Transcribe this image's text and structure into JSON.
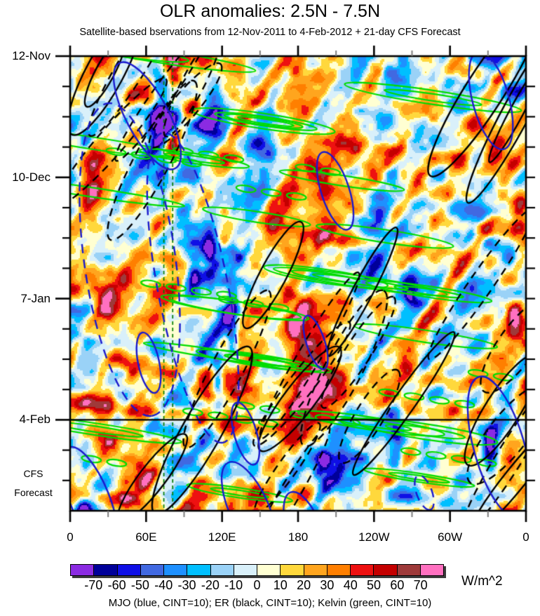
{
  "header": {
    "title": "OLR anomalies: 2.5N - 7.5N",
    "subtitle": "Satellite-based bservations from 12-Nov-2011 to 4-Feb-2012 + 21-day CFS Forecast"
  },
  "chart_data": {
    "type": "heatmap",
    "variant": "hovmoller-longitude-time",
    "title": "OLR anomalies: 2.5N - 7.5N",
    "subtitle": "Satellite-based bservations from 12-Nov-2011 to 4-Feb-2012 + 21-day CFS Forecast",
    "x_axis": {
      "ticks": [
        {
          "label": "0",
          "lon": 0
        },
        {
          "label": "60E",
          "lon": 60
        },
        {
          "label": "120E",
          "lon": 120
        },
        {
          "label": "180",
          "lon": 180
        },
        {
          "label": "120W",
          "lon": 240
        },
        {
          "label": "60W",
          "lon": 300
        },
        {
          "label": "0",
          "lon": 360
        }
      ],
      "minor_tick_interval_deg": 30,
      "range_deg": [
        0,
        360
      ]
    },
    "y_axis": {
      "ticks": [
        {
          "label": "12-Nov",
          "day": 0
        },
        {
          "label": "10-Dec",
          "day": 28
        },
        {
          "label": "7-Jan",
          "day": 56
        },
        {
          "label": "4-Feb",
          "day": 84
        }
      ],
      "minor_tick_interval_days": 7,
      "total_days": 105,
      "observation_days": 84,
      "forecast_days": 21,
      "forecast_divider_day": 84,
      "forecast_label_lines": [
        "CFS",
        "Forecast"
      ]
    },
    "colorbar": {
      "levels": [
        -70,
        -60,
        -50,
        -40,
        -30,
        -20,
        -10,
        0,
        10,
        20,
        30,
        40,
        50,
        60,
        70
      ],
      "colors": [
        "#8b2be2",
        "#000099",
        "#0f0fe6",
        "#4169e1",
        "#1e90ff",
        "#00bfff",
        "#9ad2f7",
        "#d9f0fa",
        "#ffffd2",
        "#ffd83c",
        "#ffa51e",
        "#ff7f00",
        "#ee1111",
        "#c40000",
        "#9e3a3a",
        "#ff70c0"
      ],
      "units_label": "W/m^2"
    },
    "caption": "MJO (blue, CINT=10); ER (black, CINT=10); Kelvin (green, CINT=10)",
    "contour_sets": [
      {
        "name": "MJO",
        "color": "#1a1acd",
        "cint": 10
      },
      {
        "name": "ER",
        "color": "#000000",
        "cint": 10
      },
      {
        "name": "Kelvin",
        "color": "#00dc00",
        "cint": 10
      }
    ],
    "guide_lines": {
      "style": "dashed",
      "color": "#007a00",
      "lons_deg": [
        74,
        81
      ]
    },
    "anomaly_features": [
      {
        "lon": 72,
        "day": 14,
        "sx": 11,
        "sy": 10,
        "amp": -85
      },
      {
        "lon": 81,
        "day": 3,
        "sx": 6,
        "sy": 5,
        "amp": 72
      },
      {
        "lon": 81,
        "day": 22,
        "sx": 6,
        "sy": 4,
        "amp": 62
      },
      {
        "lon": 111,
        "day": 12,
        "sx": 9,
        "sy": 8,
        "amp": -55
      },
      {
        "lon": 177,
        "day": 3,
        "sx": 8,
        "sy": 4,
        "amp": 58
      },
      {
        "lon": 17,
        "day": 28,
        "sx": 12,
        "sy": 12,
        "amp": 46
      },
      {
        "lon": 111,
        "day": 44,
        "sx": 8,
        "sy": 7,
        "amp": -78
      },
      {
        "lon": 97,
        "day": 51,
        "sx": 7,
        "sy": 6,
        "amp": -72
      },
      {
        "lon": 274,
        "day": 17,
        "sx": 10,
        "sy": 5,
        "amp": -48
      },
      {
        "lon": 296,
        "day": 6,
        "sx": 8,
        "sy": 4,
        "amp": -45
      },
      {
        "lon": 210,
        "day": 26,
        "sx": 22,
        "sy": 13,
        "amp": 40
      },
      {
        "lon": 335,
        "day": 22,
        "sx": 8,
        "sy": 5,
        "amp": 52
      },
      {
        "lon": 177,
        "day": 63,
        "sx": 11,
        "sy": 13,
        "amp": 68
      },
      {
        "lon": 193,
        "day": 71,
        "sx": 9,
        "sy": 8,
        "amp": 55
      },
      {
        "lon": 127,
        "day": 61,
        "sx": 5,
        "sy": 9,
        "amp": -72
      },
      {
        "lon": 116,
        "day": 73,
        "sx": 5,
        "sy": 7,
        "amp": -68
      },
      {
        "lon": 244,
        "day": 36,
        "sx": 11,
        "sy": 10,
        "amp": -38
      },
      {
        "lon": 269,
        "day": 55,
        "sx": 7,
        "sy": 5,
        "amp": -42
      },
      {
        "lon": 28,
        "day": 57,
        "sx": 11,
        "sy": 7,
        "amp": 42
      },
      {
        "lon": 258,
        "day": 90,
        "sx": 7,
        "sy": 6,
        "amp": -72
      },
      {
        "lon": 332,
        "day": 91,
        "sx": 6,
        "sy": 6,
        "amp": -75
      },
      {
        "lon": 354,
        "day": 40,
        "sx": 7,
        "sy": 7,
        "amp": 48
      },
      {
        "lon": 350,
        "day": 60,
        "sx": 6,
        "sy": 6,
        "amp": 44
      },
      {
        "lon": 199,
        "day": 94,
        "sx": 8,
        "sy": 6,
        "amp": -50
      },
      {
        "lon": 20,
        "day": 82,
        "sx": 10,
        "sy": 6,
        "amp": 38
      },
      {
        "lon": 55,
        "day": 99,
        "sx": 14,
        "sy": 6,
        "amp": 36
      },
      {
        "lon": 8,
        "day": 103,
        "sx": 6,
        "sy": 4,
        "amp": -35
      },
      {
        "lon": 62,
        "day": 8,
        "sx": 6,
        "sy": 5,
        "amp": 40
      },
      {
        "lon": 150,
        "day": 20,
        "sx": 10,
        "sy": 8,
        "amp": -35
      },
      {
        "lon": 230,
        "day": 60,
        "sx": 9,
        "sy": 7,
        "amp": -35
      }
    ]
  }
}
